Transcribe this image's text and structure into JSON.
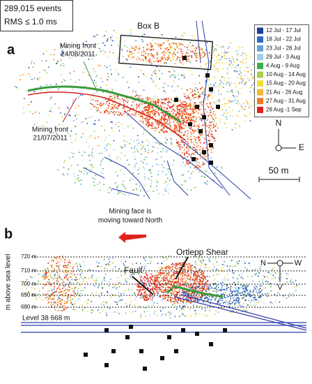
{
  "panel_a": {
    "stats": [
      "289,015 events",
      "RMS ≤ 1.0 ms"
    ],
    "label": "a",
    "box_label": "Box B",
    "front_green": {
      "lines": [
        "Mining front",
        "24/08/2011"
      ],
      "color": "#3a9a3a"
    },
    "front_red": {
      "lines": [
        "Mining front",
        "21/07/2011"
      ],
      "color": "#d42020"
    },
    "legend": [
      {
        "label": "12  Jul - 17  Jul",
        "color": "#1c3f95"
      },
      {
        "label": "18  Jul - 22 Jul",
        "color": "#2f6bc4"
      },
      {
        "label": "23  Jul - 28  Jul",
        "color": "#5fa3dc"
      },
      {
        "label": "29  Jul -  3  Aug",
        "color": "#9dd0ec"
      },
      {
        "label": "4  Aug - 9 Aug",
        "color": "#3fae4a"
      },
      {
        "label": "10 Aug - 14 Aug",
        "color": "#a6d04a"
      },
      {
        "label": "15 Aug - 20 Aug",
        "color": "#ece13a"
      },
      {
        "label": "21 Au - 26 Aug",
        "color": "#f5b830"
      },
      {
        "label": "27 Aug - 31 Aug",
        "color": "#f07a22"
      },
      {
        "label": "28 Aug -1 Sep",
        "color": "#e0221c"
      }
    ],
    "compass": [
      "N",
      "E"
    ],
    "scale": "50 m"
  },
  "panel_b": {
    "label": "b",
    "arrow_text": [
      "Mining face is",
      "moving toward North"
    ],
    "shear_label": "Ortlepp Shear",
    "fault_label": "Fault",
    "axis_title": "m above sea level",
    "depth_labels": [
      "720 m",
      "710 m",
      "700 m",
      "690 m",
      "680 m"
    ],
    "level_label": "Level 38 668 m",
    "compass": [
      "N",
      "W",
      "V"
    ]
  }
}
